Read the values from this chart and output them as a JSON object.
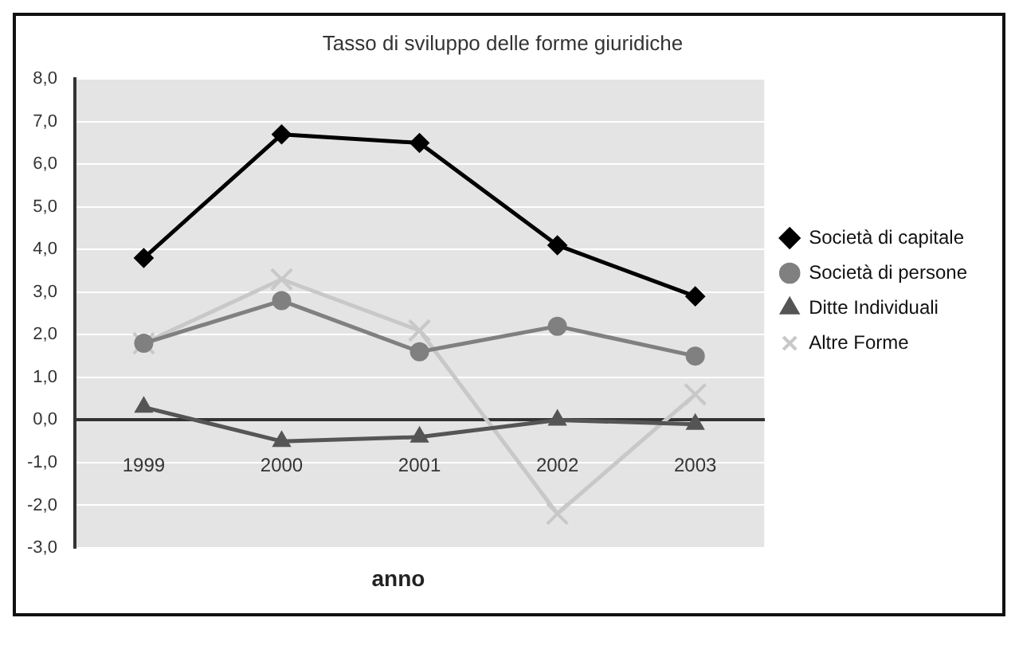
{
  "chart_data": {
    "type": "line",
    "title": "Tasso di sviluppo delle forme giuridiche",
    "xlabel": "anno",
    "categories": [
      "1999",
      "2000",
      "2001",
      "2002",
      "2003"
    ],
    "series": [
      {
        "name": "Società di capitale",
        "color": "#000000",
        "marker": "diamond",
        "values": [
          3.8,
          6.7,
          6.5,
          4.1,
          2.9
        ]
      },
      {
        "name": "Società di persone",
        "color": "#808080",
        "marker": "circle",
        "values": [
          1.8,
          2.8,
          1.6,
          2.2,
          1.5
        ]
      },
      {
        "name": "Ditte Individuali",
        "color": "#555555",
        "marker": "triangle",
        "values": [
          0.3,
          -0.5,
          -0.4,
          0.0,
          -0.1
        ]
      },
      {
        "name": "Altre Forme",
        "color": "#c8c8c8",
        "marker": "cross",
        "values": [
          1.8,
          3.3,
          2.1,
          -2.2,
          0.6
        ]
      }
    ],
    "ylim": [
      -3,
      8
    ],
    "yticks": [
      {
        "value": -3,
        "label": "-3,0"
      },
      {
        "value": -2,
        "label": "-2,0"
      },
      {
        "value": -1,
        "label": "-1,0"
      },
      {
        "value": 0,
        "label": "0,0"
      },
      {
        "value": 1,
        "label": "1,0"
      },
      {
        "value": 2,
        "label": "2,0"
      },
      {
        "value": 3,
        "label": "3,0"
      },
      {
        "value": 4,
        "label": "4,0"
      },
      {
        "value": 5,
        "label": "5,0"
      },
      {
        "value": 6,
        "label": "6,0"
      },
      {
        "value": 7,
        "label": "7,0"
      },
      {
        "value": 8,
        "label": "8,0"
      }
    ],
    "grid": "y",
    "legend": "right",
    "line_style": "solid"
  }
}
